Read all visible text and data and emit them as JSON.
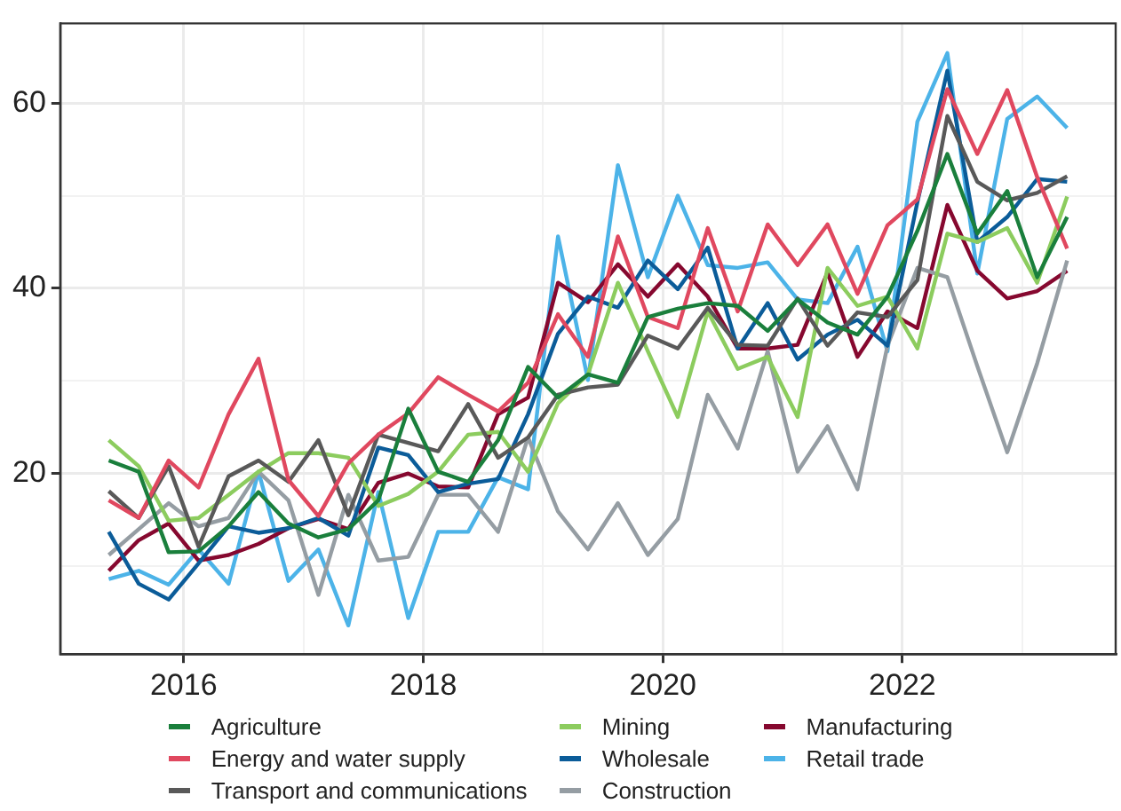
{
  "chart_data": {
    "type": "line",
    "x": [
      2015.375,
      2015.625,
      2015.875,
      2016.125,
      2016.375,
      2016.625,
      2016.875,
      2017.125,
      2017.375,
      2017.625,
      2017.875,
      2018.125,
      2018.375,
      2018.625,
      2018.875,
      2019.125,
      2019.375,
      2019.625,
      2019.875,
      2020.125,
      2020.375,
      2020.625,
      2020.875,
      2021.125,
      2021.375,
      2021.625,
      2021.875,
      2022.125,
      2022.375,
      2022.625,
      2022.875,
      2023.125,
      2023.375
    ],
    "series": [
      {
        "name": "Agriculture",
        "color": "#1a7f3c",
        "values": [
          21.4,
          20.2,
          11.5,
          11.6,
          14.3,
          18.0,
          14.6,
          13.1,
          14.0,
          17.1,
          27.0,
          20.2,
          19.1,
          23.6,
          31.5,
          28.2,
          30.7,
          29.8,
          36.9,
          37.8,
          38.4,
          38.1,
          35.4,
          38.8,
          36.3,
          35.0,
          39.1,
          46.2,
          54.5,
          45.9,
          50.5,
          41.2,
          47.7
        ]
      },
      {
        "name": "Energy and water supply",
        "color": "#e0485f",
        "values": [
          17.1,
          15.2,
          21.4,
          18.5,
          26.4,
          32.4,
          19.3,
          15.4,
          21.1,
          24.2,
          26.5,
          30.4,
          28.5,
          26.7,
          29.8,
          37.2,
          32.6,
          45.6,
          36.9,
          35.7,
          46.5,
          37.5,
          46.9,
          42.5,
          46.9,
          39.4,
          46.8,
          49.6,
          61.5,
          54.5,
          61.4,
          52.0,
          44.3
        ]
      },
      {
        "name": "Transport and communications",
        "color": "#595959",
        "values": [
          18.1,
          15.2,
          20.8,
          12.1,
          19.7,
          21.4,
          19.1,
          23.6,
          15.5,
          24.2,
          23.3,
          22.4,
          27.5,
          21.7,
          23.9,
          28.5,
          29.3,
          29.6,
          34.9,
          33.5,
          37.9,
          33.9,
          33.8,
          38.9,
          33.8,
          37.4,
          36.9,
          40.9,
          58.6,
          51.5,
          49.5,
          50.3,
          52.1
        ]
      },
      {
        "name": "Mining",
        "color": "#8ccc5e",
        "values": [
          23.6,
          20.8,
          14.9,
          15.2,
          17.7,
          20.2,
          22.2,
          22.2,
          21.7,
          16.5,
          17.8,
          20.2,
          24.2,
          24.5,
          20.2,
          27.6,
          30.7,
          40.6,
          33.2,
          26.1,
          37.5,
          31.3,
          32.6,
          26.1,
          42.2,
          38.1,
          39.1,
          33.5,
          45.9,
          45.0,
          46.5,
          40.6,
          49.9
        ]
      },
      {
        "name": "Wholesale",
        "color": "#0b5c99",
        "values": [
          13.7,
          8.1,
          6.4,
          10.3,
          14.3,
          13.6,
          14.1,
          15.2,
          13.3,
          22.8,
          22.0,
          18.0,
          18.9,
          19.4,
          26.4,
          35.1,
          39.1,
          37.9,
          43.0,
          39.9,
          44.4,
          33.5,
          38.4,
          32.3,
          35.0,
          36.6,
          33.8,
          49.3,
          63.5,
          45.0,
          47.7,
          51.8,
          51.5
        ]
      },
      {
        "name": "Construction",
        "color": "#959da3",
        "values": [
          11.2,
          14.0,
          16.8,
          14.3,
          15.2,
          20.2,
          17.1,
          6.9,
          17.7,
          10.6,
          11.0,
          17.7,
          17.7,
          13.7,
          23.9,
          15.9,
          11.8,
          16.8,
          11.2,
          15.1,
          28.5,
          22.7,
          33.2,
          20.2,
          25.1,
          18.3,
          33.8,
          42.2,
          41.2,
          31.6,
          22.3,
          31.9,
          43.0
        ]
      },
      {
        "name": "Manufacturing",
        "color": "#86082f",
        "values": [
          9.5,
          12.8,
          14.6,
          10.6,
          11.2,
          12.4,
          14.1,
          15.1,
          14.0,
          19.0,
          20.0,
          18.6,
          18.5,
          26.4,
          28.2,
          40.6,
          38.5,
          42.6,
          39.1,
          42.6,
          39.1,
          33.5,
          33.5,
          33.9,
          41.7,
          32.6,
          37.5,
          35.7,
          49.0,
          41.9,
          38.9,
          39.7,
          41.9
        ]
      },
      {
        "name": "Retail trade",
        "color": "#4cb3e8",
        "values": [
          8.6,
          9.5,
          8.0,
          11.8,
          8.1,
          20.2,
          8.4,
          11.8,
          3.6,
          18.0,
          4.4,
          13.7,
          13.7,
          19.6,
          18.3,
          45.6,
          30.1,
          53.3,
          41.2,
          50.0,
          42.5,
          42.2,
          42.8,
          38.8,
          38.4,
          44.5,
          33.2,
          58.0,
          65.4,
          41.6,
          58.3,
          60.7,
          57.3
        ]
      }
    ],
    "xlim": [
      2014.97,
      2023.78
    ],
    "xticks": [
      2016,
      {
        "value": 2017,
        "label": null
      },
      2018,
      {
        "value": 2019,
        "label": null
      },
      2020,
      {
        "value": 2021,
        "label": null
      },
      2022,
      {
        "value": 2023,
        "label": null
      }
    ],
    "ylim": [
      0.5,
      68.6
    ],
    "yticks": [
      {
        "value": 10,
        "label": null
      },
      20,
      {
        "value": 30,
        "label": null
      },
      40,
      {
        "value": 50,
        "label": null
      },
      60
    ],
    "grid": true,
    "legend": "bottom",
    "marker": "none",
    "line_style": "solid"
  }
}
